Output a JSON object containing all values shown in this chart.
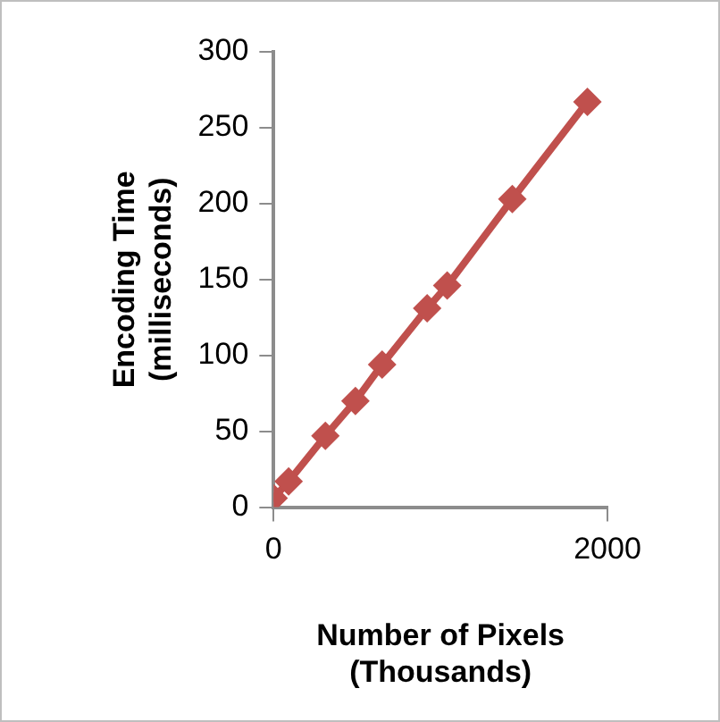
{
  "chart_data": {
    "type": "line",
    "xlabel": "Number of Pixels (Thousands)",
    "ylabel": "Encoding Time (milliseconds)",
    "x": [
      0,
      90,
      310,
      490,
      650,
      920,
      1040,
      1430,
      1880
    ],
    "series": [
      {
        "color": "#c0504d",
        "values": [
          6,
          17,
          47,
          70,
          94,
          131,
          146,
          203,
          267
        ]
      }
    ],
    "xlim": [
      0,
      2000
    ],
    "xticks": [
      0,
      2000
    ],
    "ylim": [
      0,
      300
    ],
    "yticks": [
      0,
      50,
      100,
      150,
      200,
      250,
      300
    ],
    "grid": false,
    "legend": false,
    "marker": "diamond",
    "line_style": "solid"
  }
}
